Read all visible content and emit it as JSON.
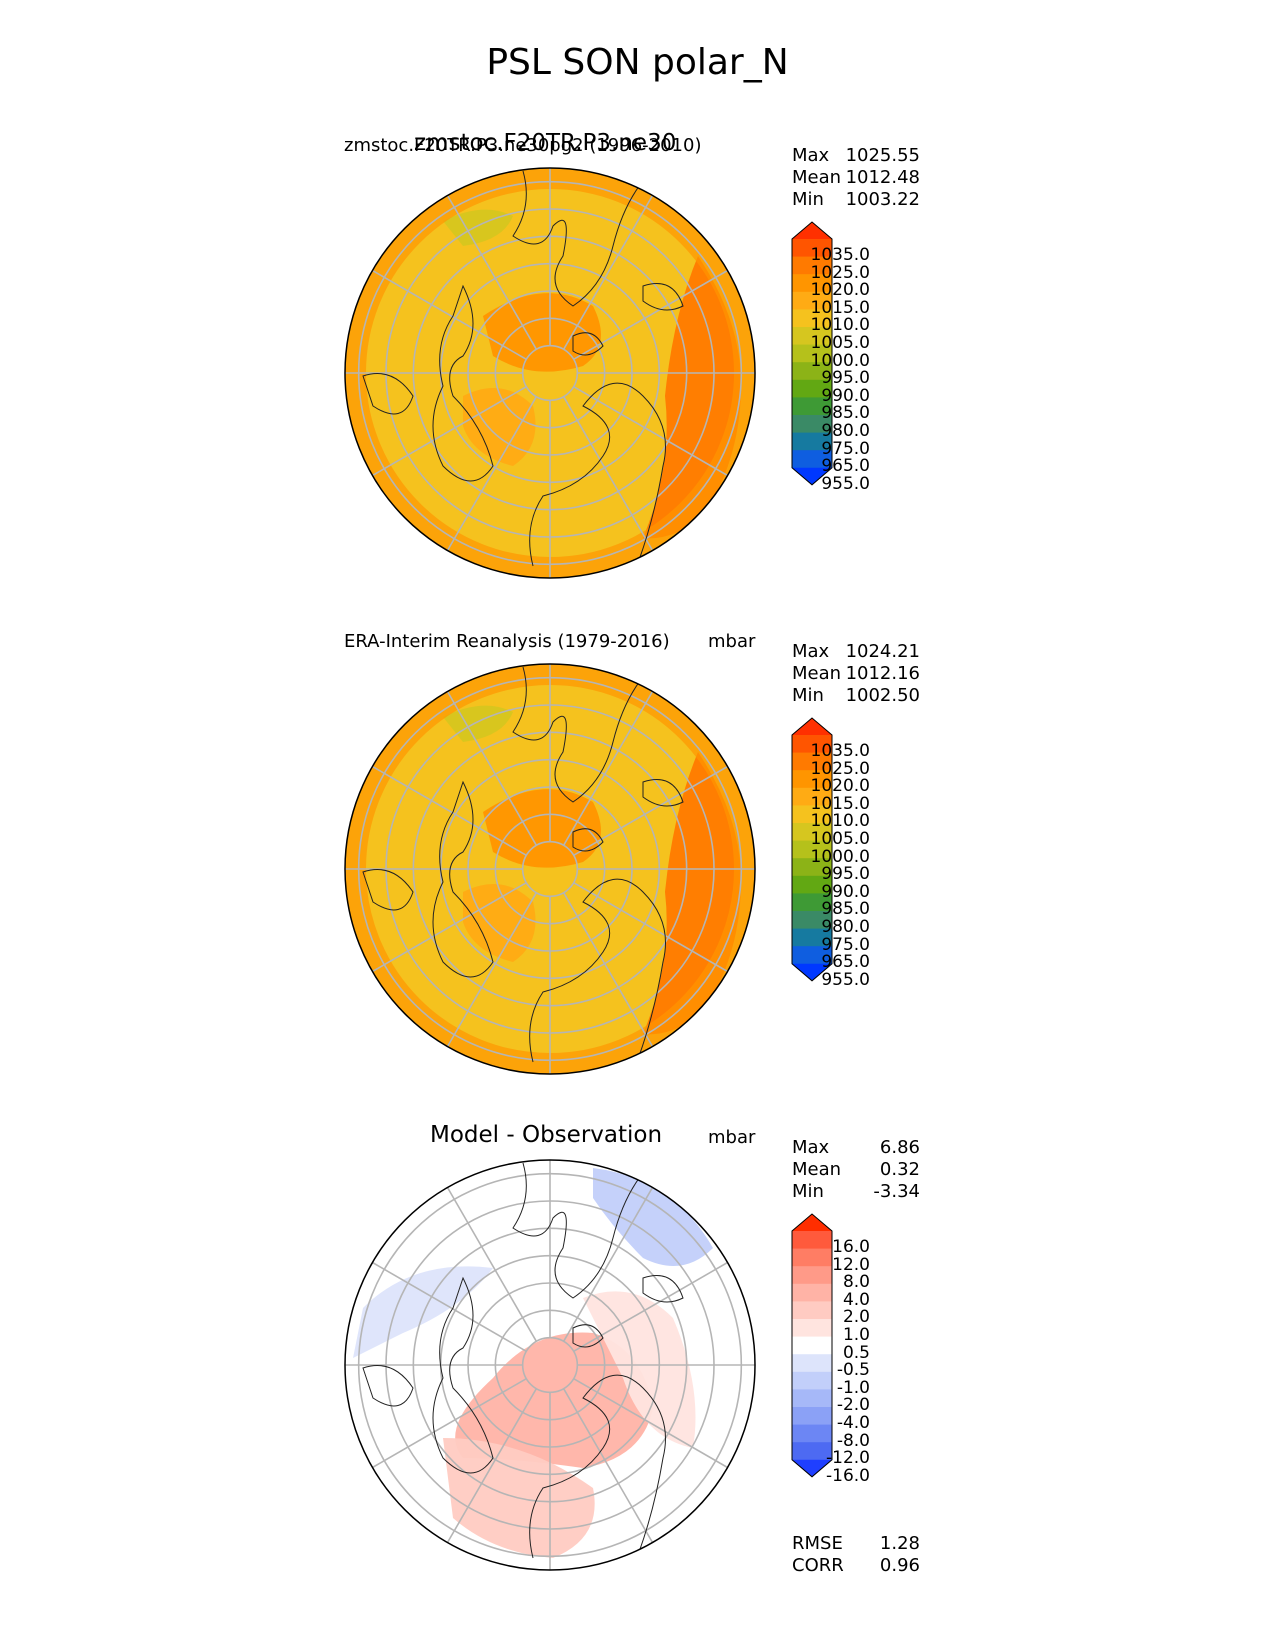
{
  "figure": {
    "title": "PSL SON polar_N"
  },
  "chart_data": [
    {
      "type": "heatmap",
      "projection": "north polar stereographic",
      "title_left": "zmstoc.F20TR.P3.ne30pg2 (1996-2010)",
      "title_center": "zmstoc.F20TR.P3.ne30",
      "title_right": "mbar",
      "stats": {
        "max_label": "Max",
        "max": "1025.55",
        "mean_label": "Mean",
        "mean": "1012.48",
        "min_label": "Min",
        "min": "1003.22"
      },
      "colorbar": {
        "levels": [
          "1035.0",
          "1025.0",
          "1020.0",
          "1015.0",
          "1010.0",
          "1005.0",
          "1000.0",
          "995.0",
          "990.0",
          "985.0",
          "980.0",
          "975.0",
          "965.0",
          "955.0"
        ],
        "colors": [
          "#ff3000",
          "#ff5500",
          "#ff7a00",
          "#ff9500",
          "#ffab14",
          "#f5c21e",
          "#d6c61f",
          "#b5c11b",
          "#8cb317",
          "#62a813",
          "#3e9a35",
          "#3a8a66",
          "#167aa0",
          "#0f5ee0",
          "#0038ff"
        ]
      },
      "map": {
        "base_color": "#f5c21e",
        "regions": [
          {
            "label": "1020-1025",
            "color": "#ff7a00"
          },
          {
            "label": "1015-1020",
            "color": "#ff9500"
          },
          {
            "label": "1010-1015",
            "color": "#ffab14"
          },
          {
            "label": "1005-1010",
            "color": "#d6c61f"
          }
        ]
      }
    },
    {
      "type": "heatmap",
      "projection": "north polar stereographic",
      "title_left": "ERA-Interim Reanalysis (1979-2016)",
      "title_right": "mbar",
      "stats": {
        "max_label": "Max",
        "max": "1024.21",
        "mean_label": "Mean",
        "mean": "1012.16",
        "min_label": "Min",
        "min": "1002.50"
      },
      "colorbar": {
        "levels": [
          "1035.0",
          "1025.0",
          "1020.0",
          "1015.0",
          "1010.0",
          "1005.0",
          "1000.0",
          "995.0",
          "990.0",
          "985.0",
          "980.0",
          "975.0",
          "965.0",
          "955.0"
        ],
        "colors": [
          "#ff3000",
          "#ff5500",
          "#ff7a00",
          "#ff9500",
          "#ffab14",
          "#f5c21e",
          "#d6c61f",
          "#b5c11b",
          "#8cb317",
          "#62a813",
          "#3e9a35",
          "#3a8a66",
          "#167aa0",
          "#0f5ee0",
          "#0038ff"
        ]
      },
      "map": {
        "base_color": "#f5c21e",
        "regions": [
          {
            "label": "1020-1025",
            "color": "#ff7a00"
          },
          {
            "label": "1015-1020",
            "color": "#ff9500"
          },
          {
            "label": "1010-1015",
            "color": "#ffab14"
          },
          {
            "label": "1005-1010",
            "color": "#d6c61f"
          }
        ]
      }
    },
    {
      "type": "heatmap",
      "projection": "north polar stereographic",
      "title_center": "Model - Observation",
      "title_right": "mbar",
      "stats": {
        "max_label": "Max",
        "max": "6.86",
        "mean_label": "Mean",
        "mean": "0.32",
        "min_label": "Min",
        "min": "-3.34"
      },
      "metrics": {
        "rmse_label": "RMSE",
        "rmse": "1.28",
        "corr_label": "CORR",
        "corr": "0.96"
      },
      "colorbar": {
        "levels": [
          "16.0",
          "12.0",
          "8.0",
          "4.0",
          "2.0",
          "1.0",
          "0.5",
          "-0.5",
          "-1.0",
          "-2.0",
          "-4.0",
          "-8.0",
          "-12.0",
          "-16.0"
        ],
        "colors": [
          "#ff2e00",
          "#ff5a3c",
          "#ff7d64",
          "#ff9a88",
          "#ffb3a6",
          "#ffcbc2",
          "#ffe4df",
          "#ffffff",
          "#dde4fb",
          "#c2cffa",
          "#a6b8f8",
          "#8ba1f6",
          "#6c86f4",
          "#4d6af2",
          "#1f3fff"
        ]
      },
      "map": {
        "base_color": "#ffffff",
        "regions": [
          {
            "label": "2 to 4",
            "color": "#ffb3a6"
          },
          {
            "label": "1 to 2",
            "color": "#ffcbc2"
          },
          {
            "label": "0.5 to 1",
            "color": "#ffe4df"
          },
          {
            "label": "-1 to -0.5",
            "color": "#dde4fb"
          },
          {
            "label": "-2 to -1",
            "color": "#c2cffa"
          }
        ]
      }
    }
  ]
}
